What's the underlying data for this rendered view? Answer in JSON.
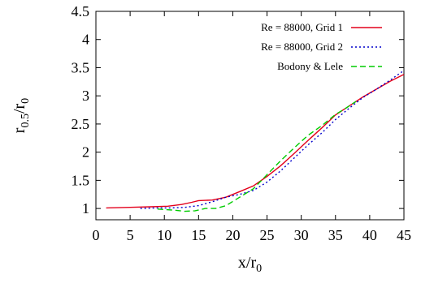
{
  "chart_data": {
    "type": "line",
    "title": "",
    "xlabel": {
      "base": "x/r",
      "sub": "0"
    },
    "ylabel": {
      "base": "r",
      "sub1": "0.5",
      "mid": "/r",
      "sub2": "0"
    },
    "xlim": [
      0,
      45
    ],
    "ylim": [
      0.8,
      4.5
    ],
    "xticks": [
      0,
      5,
      10,
      15,
      20,
      25,
      30,
      35,
      40,
      45
    ],
    "yticks": [
      1,
      1.5,
      2,
      2.5,
      3,
      3.5,
      4,
      4.5
    ],
    "grid": false,
    "legend_position": "top-right",
    "series": [
      {
        "name": "Re = 88000, Grid 1",
        "color": "#e3001b",
        "dash": "solid",
        "x": [
          1.5,
          5,
          8,
          10.5,
          12.5,
          14,
          15,
          17,
          19,
          21,
          23,
          25,
          27,
          29,
          31,
          33,
          35,
          37,
          39,
          41,
          43,
          45
        ],
        "y": [
          1.01,
          1.02,
          1.03,
          1.04,
          1.07,
          1.11,
          1.14,
          1.15,
          1.2,
          1.3,
          1.4,
          1.57,
          1.76,
          1.98,
          2.21,
          2.43,
          2.66,
          2.82,
          2.98,
          3.12,
          3.26,
          3.38
        ]
      },
      {
        "name": "Re = 88000, Grid 2",
        "color": "#0000cc",
        "dash": "dotted",
        "x": [
          6.5,
          9,
          11,
          13,
          15,
          17,
          19,
          21,
          23,
          25,
          27,
          29,
          31,
          33,
          35,
          37,
          39,
          41,
          43,
          45
        ],
        "y": [
          1.0,
          1.01,
          1.01,
          1.02,
          1.05,
          1.12,
          1.2,
          1.25,
          1.32,
          1.47,
          1.67,
          1.9,
          2.13,
          2.34,
          2.58,
          2.78,
          2.97,
          3.12,
          3.28,
          3.45
        ]
      },
      {
        "name": "Bodony & Lele",
        "color": "#00cc00",
        "dash": "dashed",
        "x": [
          9,
          11.5,
          13,
          14.5,
          16,
          17.5,
          19,
          21,
          23,
          25,
          27,
          29,
          31,
          33,
          35,
          36.5,
          38
        ],
        "y": [
          0.99,
          0.97,
          0.95,
          0.96,
          1.0,
          1.0,
          1.05,
          1.2,
          1.35,
          1.6,
          1.85,
          2.08,
          2.3,
          2.47,
          2.67,
          2.78,
          2.9
        ]
      }
    ]
  }
}
